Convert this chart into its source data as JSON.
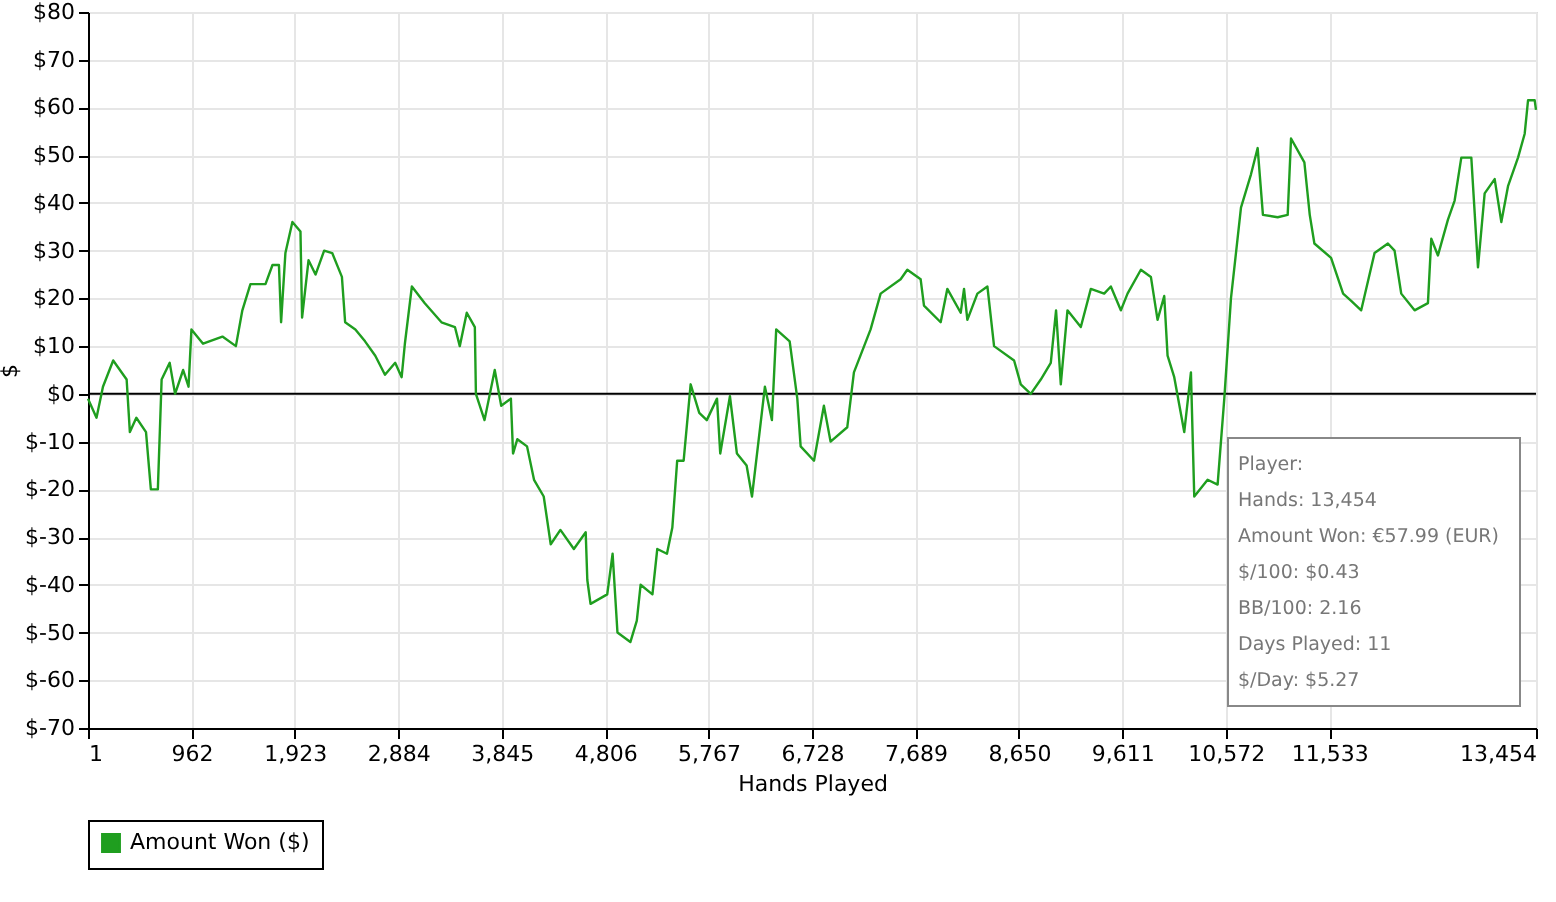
{
  "chart_data": {
    "type": "line",
    "xlabel": "Hands Played",
    "ylabel": "$",
    "xlim": [
      1,
      13454
    ],
    "ylim": [
      -70,
      80
    ],
    "xticks": [
      1,
      962,
      {
        "value": 1923,
        "label": "1,923"
      },
      {
        "value": 2884,
        "label": "2,884"
      },
      {
        "value": 3845,
        "label": "3,845"
      },
      {
        "value": 4806,
        "label": "4,806"
      },
      {
        "value": 5767,
        "label": "5,767"
      },
      {
        "value": 6728,
        "label": "6,728"
      },
      {
        "value": 7689,
        "label": "7,689"
      },
      {
        "value": 8650,
        "label": "8,650"
      },
      {
        "value": 9611,
        "label": "9,611"
      },
      {
        "value": 10572,
        "label": "10,572"
      },
      {
        "value": 11533,
        "label": "11,533"
      },
      {
        "value": 13454,
        "label": "13,454"
      }
    ],
    "yticks": [
      {
        "value": -70,
        "label": "$-70"
      },
      {
        "value": -60,
        "label": "$-60"
      },
      {
        "value": -50,
        "label": "$-50"
      },
      {
        "value": -40,
        "label": "$-40"
      },
      {
        "value": -30,
        "label": "$-30"
      },
      {
        "value": -20,
        "label": "$-20"
      },
      {
        "value": -10,
        "label": "$-10"
      },
      {
        "value": 0,
        "label": "$0"
      },
      {
        "value": 10,
        "label": "$10"
      },
      {
        "value": 20,
        "label": "$20"
      },
      {
        "value": 30,
        "label": "$30"
      },
      {
        "value": 40,
        "label": "$40"
      },
      {
        "value": 50,
        "label": "$50"
      },
      {
        "value": 60,
        "label": "$60"
      },
      {
        "value": 70,
        "label": "$70"
      },
      {
        "value": 80,
        "label": "$80"
      }
    ],
    "grid": true,
    "legend": "bottom left",
    "marker": "none",
    "line_style": "solid",
    "ref_lines": [
      {
        "axis": "y",
        "value": 0,
        "color": "#000000"
      }
    ],
    "annotations": [
      "Player:",
      "Hands: 13,454",
      "Amount Won: €57.99 (EUR)",
      "$/100: $0.43",
      "BB/100: 2.16",
      "Days Played: 11",
      "$/Day: $5.27"
    ],
    "series": [
      {
        "name": "Amount Won ($)",
        "color": "#1f9e1f",
        "x": [
          1,
          80,
          140,
          235,
          360,
          390,
          450,
          540,
          585,
          650,
          685,
          760,
          810,
          885,
          935,
          962,
          1070,
          1250,
          1375,
          1435,
          1510,
          1650,
          1715,
          1775,
          1795,
          1835,
          1900,
          1975,
          1990,
          2050,
          2115,
          2195,
          2270,
          2360,
          2390,
          2485,
          2575,
          2670,
          2760,
          2855,
          2915,
          2945,
          3010,
          3130,
          3285,
          3410,
          3455,
          3520,
          3595,
          3605,
          3685,
          3780,
          3840,
          3930,
          3950,
          3990,
          4080,
          4145,
          4235,
          4300,
          4390,
          4515,
          4625,
          4640,
          4670,
          4825,
          4875,
          4920,
          5040,
          5100,
          5135,
          5245,
          5290,
          5380,
          5430,
          5475,
          5535,
          5600,
          5680,
          5750,
          5845,
          5875,
          5965,
          6030,
          6120,
          6170,
          6230,
          6290,
          6355,
          6395,
          6520,
          6591,
          6622,
          6746,
          6838,
          6900,
          7055,
          7117,
          7272,
          7365,
          7551,
          7613,
          7737,
          7768,
          7923,
          7985,
          8109,
          8140,
          8171,
          8264,
          8357,
          8419,
          8605,
          8667,
          8760,
          8853,
          8946,
          8995,
          9039,
          9101,
          9225,
          9318,
          9442,
          9504,
          9597,
          9659,
          9783,
          9876,
          9938,
          10000,
          10031,
          10093,
          10186,
          10248,
          10279,
          10403,
          10496,
          10558,
          10620,
          10713,
          10806,
          10868,
          10917,
          11054,
          11147,
          11178,
          11302,
          11352,
          11395,
          11550,
          11662,
          11737,
          11830,
          11954,
          12078,
          12140,
          12202,
          12326,
          12450,
          12481,
          12543,
          12636,
          12698,
          12760,
          12853,
          12915,
          12977,
          13070,
          13132,
          13194,
          13287,
          13349,
          13380,
          13442,
          13454
        ],
        "values": [
          -1,
          -5,
          1.5,
          7,
          3,
          -8,
          -5,
          -8,
          -20,
          -20,
          3,
          6.5,
          0,
          5,
          1.5,
          13.5,
          10.5,
          12,
          10,
          17.5,
          23,
          23,
          27,
          27,
          15,
          29.5,
          36,
          34,
          16,
          28,
          25,
          30,
          29.5,
          24.5,
          15,
          13.5,
          11,
          8,
          4,
          6.5,
          3.5,
          10.5,
          22.5,
          19,
          15,
          14,
          10,
          17,
          14,
          0,
          -5.5,
          5,
          -2.5,
          -1,
          -12.5,
          -9.5,
          -11,
          -18,
          -21.5,
          -31.5,
          -28.5,
          -32.5,
          -29,
          -39,
          -44,
          -42,
          -33.5,
          -50,
          -52,
          -47.5,
          -40,
          -42,
          -32.5,
          -33.5,
          -28,
          -14,
          -14,
          2,
          -4,
          -5.5,
          -1,
          -12.5,
          -0.5,
          -12.5,
          -15,
          -21.5,
          -10,
          1.5,
          -5.5,
          13.5,
          11,
          -1,
          -11,
          -14,
          -2.5,
          -10,
          -7,
          4.5,
          13.5,
          21,
          24,
          26,
          24,
          18.5,
          15,
          22,
          17,
          22,
          15.5,
          21,
          22.5,
          10,
          7,
          2,
          0,
          3,
          6.5,
          17.5,
          2,
          17.5,
          14,
          22,
          21,
          22.5,
          17.5,
          21,
          26,
          24.5,
          15.5,
          20.5,
          8,
          3.5,
          -8,
          4.5,
          -21.5,
          -18,
          -19,
          -1,
          20,
          39,
          46,
          51.5,
          37.5,
          37,
          37.5,
          53.5,
          48.5,
          37.5,
          31.5,
          28.5,
          21,
          19.5,
          17.5,
          29.5,
          31.5,
          30,
          21,
          17.5,
          19,
          32.5,
          29,
          36.5,
          40.5,
          49.5,
          49.5,
          26.5,
          42,
          45,
          36,
          43.5,
          49.5,
          54.5,
          61.5,
          61.5,
          59.5
        ]
      }
    ]
  }
}
